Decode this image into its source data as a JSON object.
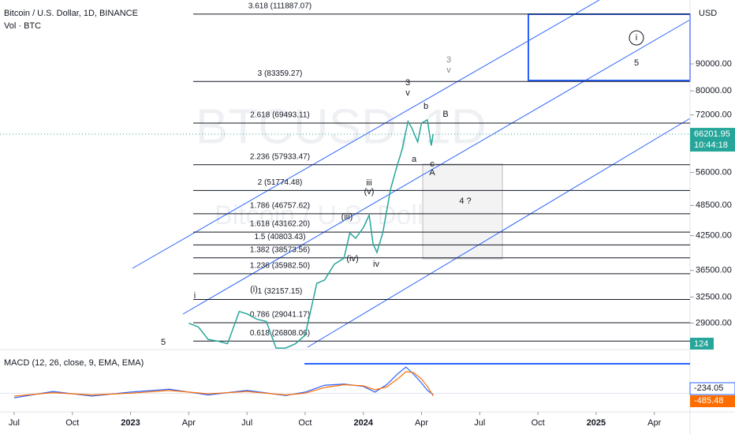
{
  "header": {
    "symbol": "Bitcoin / U.S. Dollar, 1D, BINANCE",
    "volume": "Vol · BTC",
    "currency": "USD",
    "watermark_symbol": "BTCUSD, 1D",
    "watermark_name": "Bitcoin / U.S. Dollar"
  },
  "chart_data": {
    "type": "line",
    "log": true,
    "color": "#26a69a",
    "x": [
      9.0,
      9.5,
      10.0,
      10.5,
      11.0,
      11.6,
      12.0,
      12.5,
      13.0,
      13.5,
      14.0,
      14.5,
      15.0,
      15.6,
      16.0,
      16.5,
      17.0,
      17.3,
      17.6,
      18.0,
      18.3,
      18.5,
      18.7,
      19.0,
      19.4,
      19.7,
      20.0,
      20.3,
      20.5,
      20.8,
      21.0,
      21.3,
      21.5,
      21.6
    ],
    "values": [
      29000,
      28500,
      27000,
      26800,
      26500,
      30500,
      30200,
      29500,
      29200,
      26000,
      26000,
      26500,
      27500,
      34500,
      35000,
      37500,
      38500,
      43000,
      42000,
      44000,
      46500,
      41000,
      39500,
      43000,
      52000,
      57000,
      62000,
      70000,
      68000,
      64000,
      69500,
      70500,
      63000,
      66201.95
    ],
    "xlim": [
      -0.73,
      34.84
    ],
    "xticks": [
      {
        "value": 0,
        "label": "Jul"
      },
      {
        "value": 3,
        "label": "Oct"
      },
      {
        "value": 6,
        "label": "2023"
      },
      {
        "value": 9,
        "label": "Apr"
      },
      {
        "value": 12,
        "label": "Jul"
      },
      {
        "value": 15,
        "label": "Oct"
      },
      {
        "value": 18,
        "label": "2024"
      },
      {
        "value": 21,
        "label": "Apr"
      },
      {
        "value": 24,
        "label": "Jul"
      },
      {
        "value": 27,
        "label": "Oct"
      },
      {
        "value": 30,
        "label": "2025"
      },
      {
        "value": 33,
        "label": "Apr"
      }
    ],
    "ylim": [
      25830,
      119000
    ],
    "yticks": [
      {
        "value": 90000,
        "label": "90000.00"
      },
      {
        "value": 80000,
        "label": "80000.00"
      },
      {
        "value": 72000,
        "label": "72000.00"
      },
      {
        "value": 56000,
        "label": "56000.00"
      },
      {
        "value": 48500,
        "label": "48500.00"
      },
      {
        "value": 42500,
        "label": "42500.00"
      },
      {
        "value": 36500,
        "label": "36500.00"
      },
      {
        "value": 32500,
        "label": "32500.00"
      },
      {
        "value": 29000,
        "label": "29000.00"
      }
    ],
    "levels": [
      {
        "value": 111887.07,
        "label": "3.618 (111887.07)"
      },
      {
        "value": 83359.27,
        "label": "3 (83359.27)"
      },
      {
        "value": 69493.11,
        "label": "2.618 (69493.11)"
      },
      {
        "value": 57933.47,
        "label": "2.236 (57933.47)"
      },
      {
        "value": 51774.48,
        "label": "2 (51774.48)"
      },
      {
        "value": 46757.62,
        "label": "1.786 (46757.62)"
      },
      {
        "value": 43162.2,
        "label": "1.618 (43162.20)"
      },
      {
        "value": 40803.43,
        "label": "1.5 (40803.43)"
      },
      {
        "value": 38573.56,
        "label": "1.382 (38573.56)"
      },
      {
        "value": 35982.5,
        "label": "1.236 (35982.50)"
      },
      {
        "value": 32157.15,
        "label": "1 (32157.15)"
      },
      {
        "value": 29041.17,
        "label": "0.786 (29041.17)"
      },
      {
        "value": 26808.06,
        "label": "0.618 (26808.06)"
      }
    ],
    "annotations": [
      "i",
      "(i)",
      "5",
      "(iii)",
      "iii",
      "(v)",
      "(iv)",
      "iv",
      "3",
      "v",
      "3",
      "v",
      "b",
      "B",
      "a",
      "c",
      "A",
      "4 ?",
      "i",
      "5"
    ],
    "last_price": 66201.95,
    "countdown": "10:44:18",
    "volume_last": 124,
    "macd": {
      "title": "MACD (12, 26, close, 9, EMA, EMA)",
      "ylim": [
        -3000,
        6000
      ],
      "x": [
        0,
        2,
        4,
        6,
        8,
        10,
        12,
        14,
        15,
        16,
        17,
        18,
        18.6,
        19.2,
        19.8,
        20.2,
        20.6,
        21.0,
        21.3,
        21.6
      ],
      "values": [
        -800,
        300,
        -500,
        200,
        700,
        -300,
        500,
        -400,
        200,
        1400,
        1600,
        1200,
        200,
        1500,
        3500,
        4600,
        3300,
        1800,
        500,
        -234.05
      ],
      "signal_values": [
        -500,
        100,
        -300,
        0,
        500,
        -100,
        300,
        -300,
        0,
        1000,
        1500,
        1300,
        600,
        1100,
        2600,
        3800,
        3600,
        2500,
        1200,
        -485.48
      ]
    }
  }
}
